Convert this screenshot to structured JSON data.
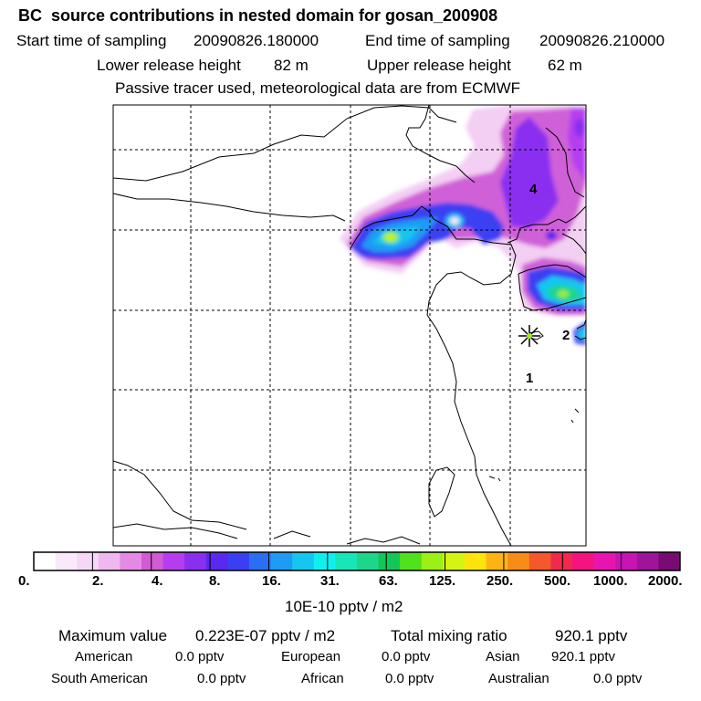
{
  "header": {
    "title": "BC  source contributions in nested domain for gosan_200908",
    "start_label": "Start time of sampling",
    "start_value": "20090826.180000",
    "end_label": "End time of sampling",
    "end_value": "20090826.210000",
    "lower_label": "Lower release height",
    "lower_value": "82 m",
    "upper_label": "Upper release height",
    "upper_value": "62 m",
    "tracer_note": "Passive tracer used, meteorological data are from ECMWF"
  },
  "map": {
    "markers": [
      "1",
      "2",
      "4"
    ],
    "station_symbol": "asterisk"
  },
  "colorbar": {
    "ticks": [
      "0.",
      "2.",
      "4.",
      "8.",
      "16.",
      "31.",
      "63.",
      "125.",
      "250.",
      "500.",
      "1000.",
      "2000."
    ],
    "colors": [
      "#ffffff",
      "#fbe9fb",
      "#f7d7f7",
      "#f0b8f0",
      "#e48ae4",
      "#d25ad2",
      "#b63cf0",
      "#8a2ef0",
      "#5a28ee",
      "#3a40f2",
      "#2a6ef5",
      "#1e9cf4",
      "#14c6f0",
      "#0ef0ee",
      "#18e6b8",
      "#1ed68a",
      "#14c658",
      "#52e21c",
      "#9cf014",
      "#d6f414",
      "#fde40c",
      "#fcb414",
      "#f88c18",
      "#f4582c",
      "#f02a4c",
      "#f41480",
      "#e814b0",
      "#c814b4",
      "#a0149c",
      "#780c74"
    ],
    "unit_label": "10E-10 pptv / m2"
  },
  "footer": {
    "max_label": "Maximum value",
    "max_value": "0.223E-07 pptv / m2",
    "total_label": "Total mixing ratio",
    "total_value": "920.1 pptv",
    "sources": [
      {
        "name": "American",
        "value": "0.0 pptv"
      },
      {
        "name": "European",
        "value": "0.0 pptv"
      },
      {
        "name": "Asian",
        "value": "920.1 pptv"
      },
      {
        "name": "South American",
        "value": "0.0 pptv"
      },
      {
        "name": "African",
        "value": "0.0 pptv"
      },
      {
        "name": "Australian",
        "value": "0.0 pptv"
      }
    ]
  }
}
